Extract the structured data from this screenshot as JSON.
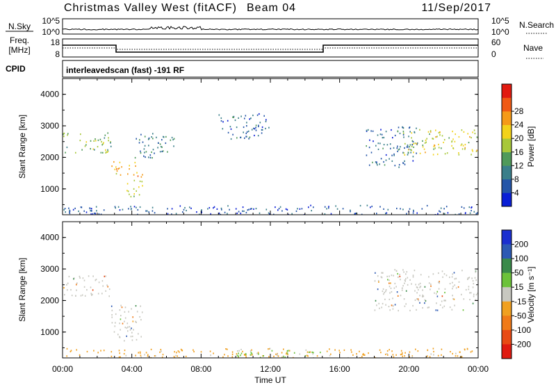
{
  "header": {
    "site": "Christmas Valley West (fitACF)",
    "beam": "Beam 04",
    "date": "11/Sep/2017"
  },
  "panels": {
    "nsky": {
      "label": "N.Sky",
      "ticks": [
        "10^5",
        "10^0"
      ],
      "right_ticks": [
        "10^5",
        "10^0"
      ],
      "right_label": "N.Search"
    },
    "freq": {
      "label_line1": "Freq.",
      "label_line2": "[MHz]",
      "ticks": [
        "18",
        "8"
      ],
      "right_ticks": [
        "60",
        "0"
      ],
      "right_label": "Nave"
    },
    "cpid": {
      "label": "CPID",
      "program": "interleavedscan (fast) -191 RF"
    }
  },
  "chart_data": [
    {
      "type": "heatmap",
      "name": "power",
      "ylabel": "Slant Range [km]",
      "xlabel": "",
      "yticks": [
        "1000",
        "2000",
        "3000",
        "4000"
      ],
      "ylim": [
        180,
        4500
      ],
      "xlim": [
        0,
        24
      ],
      "colorbar": {
        "label": "Power [dB]",
        "ticks": [
          "4",
          "8",
          "12",
          "16",
          "20",
          "24",
          "28"
        ],
        "colors": [
          "#0a1fd6",
          "#2455a8",
          "#3a7f8a",
          "#4f9a5a",
          "#a8c83a",
          "#f3d21a",
          "#f59a18",
          "#f05a14",
          "#e21a10"
        ]
      },
      "features": [
        {
          "t0": 0.0,
          "t1": 2.8,
          "r0": 2150,
          "r1": 2800,
          "level": 16
        },
        {
          "t0": 2.8,
          "t1": 4.6,
          "r0": 1400,
          "r1": 1900,
          "level": 24
        },
        {
          "t0": 3.6,
          "t1": 4.6,
          "r0": 700,
          "r1": 1300,
          "level": 20
        },
        {
          "t0": 4.0,
          "t1": 6.5,
          "r0": 2000,
          "r1": 2800,
          "level": 10
        },
        {
          "t0": 0.0,
          "t1": 24.0,
          "r0": 200,
          "r1": 500,
          "level": 6
        },
        {
          "t0": 9.0,
          "t1": 12.0,
          "r0": 2600,
          "r1": 3400,
          "level": 8
        },
        {
          "t0": 17.5,
          "t1": 20.5,
          "r0": 1700,
          "r1": 3000,
          "level": 8
        },
        {
          "t0": 19.5,
          "t1": 24.0,
          "r0": 2100,
          "r1": 2900,
          "level": 20
        }
      ]
    },
    {
      "type": "heatmap",
      "name": "velocity",
      "ylabel": "Slant Range [km]",
      "xlabel": "Time UT",
      "xticks": [
        "00:00",
        "04:00",
        "08:00",
        "12:00",
        "16:00",
        "20:00",
        "00:00"
      ],
      "yticks": [
        "1000",
        "2000",
        "3000",
        "4000"
      ],
      "ylim": [
        180,
        4500
      ],
      "xlim": [
        0,
        24
      ],
      "colorbar": {
        "label": "Velocity [m s⁻¹]",
        "ticks": [
          "200",
          "100",
          "50",
          "15",
          "-15",
          "-50",
          "-100",
          "-200"
        ],
        "colors": [
          "#1b2fd0",
          "#2d5ab4",
          "#3a8a4a",
          "#6cc23a",
          "#c8c8c0",
          "#f0a020",
          "#f07a18",
          "#e84a14",
          "#e01a10"
        ]
      },
      "features": [
        {
          "t0": 0.0,
          "t1": 2.8,
          "r0": 2150,
          "r1": 2800,
          "level": 0
        },
        {
          "t0": 2.8,
          "t1": 4.6,
          "r0": 700,
          "r1": 1900,
          "level": 0
        },
        {
          "t0": 0.0,
          "t1": 24.0,
          "r0": 200,
          "r1": 500,
          "level": -30
        },
        {
          "t0": 10.0,
          "t1": 15.0,
          "r0": 200,
          "r1": 450,
          "level": 30
        },
        {
          "t0": 18.0,
          "t1": 24.0,
          "r0": 1700,
          "r1": 3000,
          "level": 0
        }
      ]
    }
  ]
}
